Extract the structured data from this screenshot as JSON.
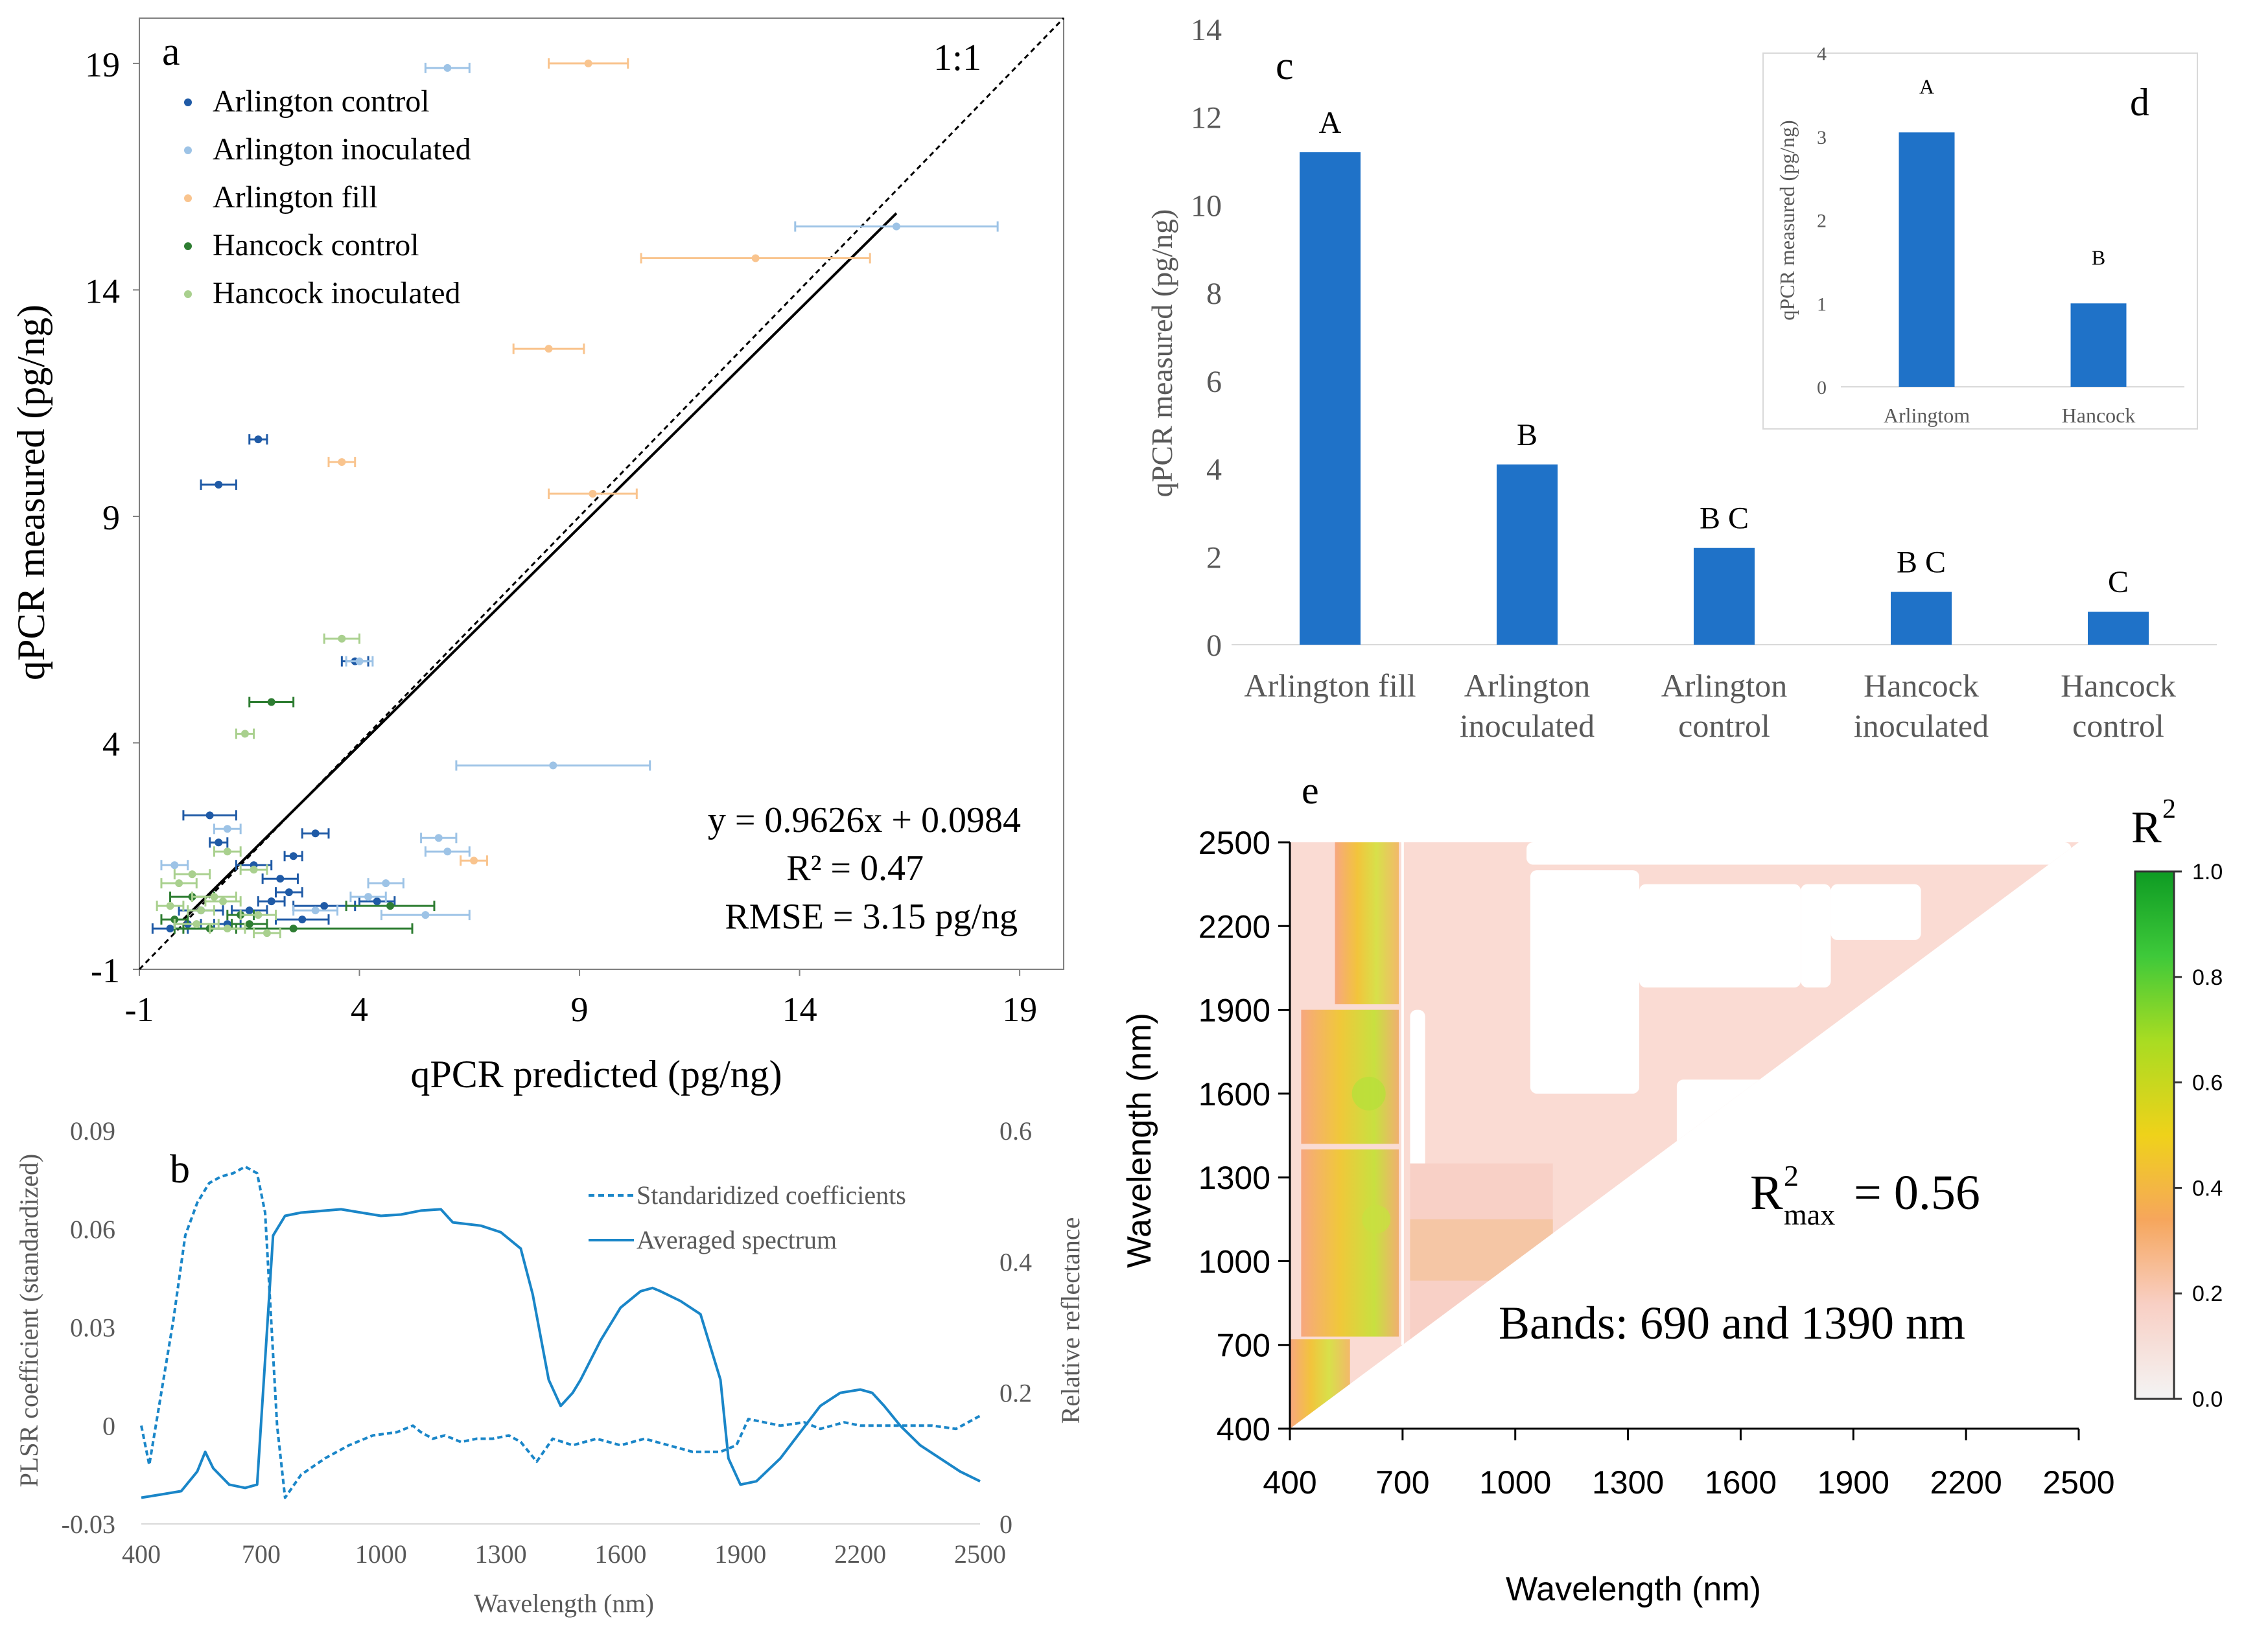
{
  "chart_data": [
    {
      "panel": "a",
      "type": "scatter",
      "xlabel": "qPCR predicted (pg/ng)",
      "ylabel": "qPCR measured (pg/ng)",
      "xlim": [
        -1,
        20
      ],
      "ylim": [
        -1,
        20
      ],
      "xticks": [
        "-1",
        "4",
        "9",
        "14",
        "19"
      ],
      "yticks": [
        "-1",
        "4",
        "9",
        "14",
        "19"
      ],
      "one_to_one_label": "1:1",
      "equation": "y = 0.9626x + 0.0984",
      "r2_text": "R² = 0.47",
      "rmse_text": "RMSE = 3.15 pg/ng",
      "fit": {
        "slope": 0.9626,
        "intercept": 0.0984,
        "x_range": [
          0,
          16.2
        ]
      },
      "series": [
        {
          "name": "Arlington control",
          "color": "#1f5aa6",
          "points": [
            [
              1.7,
              10.7,
              0.2
            ],
            [
              0.8,
              9.7,
              0.4
            ],
            [
              3.9,
              5.8,
              0.3
            ],
            [
              0.6,
              2.4,
              0.6
            ],
            [
              0.8,
              1.8,
              0.2
            ],
            [
              1.6,
              1.3,
              0.4
            ],
            [
              2.2,
              1.0,
              0.4
            ],
            [
              2.4,
              0.7,
              0.3
            ],
            [
              2.0,
              0.5,
              0.3
            ],
            [
              3.0,
              2.0,
              0.3
            ],
            [
              2.5,
              1.5,
              0.2
            ],
            [
              0.4,
              0.3,
              0.5
            ],
            [
              1.0,
              0.0,
              0.3
            ],
            [
              1.5,
              0.3,
              0.4
            ],
            [
              4.4,
              0.5,
              0.4
            ],
            [
              3.2,
              0.4,
              0.7
            ],
            [
              2.7,
              0.1,
              0.6
            ],
            [
              0.1,
              0.0,
              0.3
            ],
            [
              -0.3,
              -0.1,
              0.4
            ]
          ]
        },
        {
          "name": "Arlington inoculated",
          "color": "#9dc3e6",
          "points": [
            [
              6.0,
              18.9,
              0.5
            ],
            [
              16.2,
              15.4,
              2.3
            ],
            [
              4.6,
              0.9,
              0.4
            ],
            [
              8.4,
              3.5,
              2.2
            ],
            [
              1.0,
              2.1,
              0.3
            ],
            [
              6.0,
              1.6,
              0.5
            ],
            [
              5.5,
              0.2,
              1.0
            ],
            [
              4.0,
              5.8,
              0.3
            ],
            [
              3.0,
              0.3,
              0.5
            ],
            [
              -0.2,
              1.3,
              0.3
            ],
            [
              4.2,
              0.6,
              0.4
            ],
            [
              5.8,
              1.9,
              0.4
            ]
          ]
        },
        {
          "name": "Arlington fill",
          "color": "#f9c48e",
          "points": [
            [
              9.2,
              19.0,
              0.9
            ],
            [
              13.0,
              14.7,
              2.6
            ],
            [
              8.3,
              12.7,
              0.8
            ],
            [
              3.6,
              10.2,
              0.3
            ],
            [
              9.3,
              9.5,
              1.0
            ],
            [
              6.6,
              1.4,
              0.3
            ]
          ]
        },
        {
          "name": "Hancock control",
          "color": "#2e7d32",
          "points": [
            [
              2.0,
              4.9,
              0.5
            ],
            [
              4.7,
              0.4,
              1.0
            ],
            [
              1.5,
              0.0,
              0.4
            ],
            [
              0.2,
              0.6,
              0.5
            ],
            [
              1.3,
              0.2,
              0.3
            ],
            [
              -0.2,
              0.1,
              0.3
            ],
            [
              0.6,
              -0.1,
              0.6
            ],
            [
              2.5,
              -0.1,
              2.7
            ]
          ]
        },
        {
          "name": "Hancock inoculated",
          "color": "#a9d08e",
          "points": [
            [
              3.6,
              6.3,
              0.4
            ],
            [
              1.4,
              4.2,
              0.2
            ],
            [
              1.0,
              1.6,
              0.3
            ],
            [
              1.6,
              1.2,
              0.3
            ],
            [
              0.2,
              1.1,
              0.4
            ],
            [
              -0.1,
              0.9,
              0.4
            ],
            [
              0.9,
              0.5,
              0.4
            ],
            [
              0.4,
              0.3,
              0.3
            ],
            [
              1.7,
              0.2,
              0.4
            ],
            [
              0.3,
              0.0,
              0.5
            ],
            [
              1.0,
              -0.1,
              0.4
            ],
            [
              0.7,
              0.6,
              0.5
            ],
            [
              -0.3,
              0.4,
              0.3
            ],
            [
              1.9,
              -0.2,
              0.3
            ]
          ]
        }
      ]
    },
    {
      "panel": "b",
      "type": "line",
      "xlabel": "Wavelength (nm)",
      "ylabel_left": "PLSR coefficient (standardized)",
      "ylabel_right": "Relative reflectance",
      "xlim": [
        400,
        2500
      ],
      "ylim_left": [
        -0.03,
        0.09
      ],
      "ylim_right": [
        0,
        0.6
      ],
      "xticks": [
        "400",
        "700",
        "1000",
        "1300",
        "1600",
        "1900",
        "2200",
        "2500"
      ],
      "yticks_left": [
        "-0.03",
        "0",
        "0.03",
        "0.06",
        "0.09"
      ],
      "yticks_right": [
        "0",
        "0.2",
        "0.4",
        "0.6"
      ],
      "series": [
        {
          "name": "Standaridized coefficients",
          "axis": "left",
          "style": "dashed",
          "x": [
            400,
            420,
            450,
            480,
            510,
            540,
            570,
            600,
            630,
            660,
            690,
            710,
            740,
            760,
            800,
            860,
            920,
            980,
            1040,
            1080,
            1100,
            1130,
            1160,
            1200,
            1240,
            1280,
            1320,
            1350,
            1390,
            1430,
            1480,
            1540,
            1600,
            1660,
            1720,
            1780,
            1850,
            1890,
            1920,
            2000,
            2060,
            2100,
            2160,
            2200,
            2260,
            2320,
            2380,
            2440,
            2500
          ],
          "y": [
            0.0,
            -0.012,
            0.01,
            0.032,
            0.058,
            0.068,
            0.074,
            0.076,
            0.077,
            0.079,
            0.077,
            0.065,
            0.0,
            -0.022,
            -0.015,
            -0.01,
            -0.006,
            -0.003,
            -0.002,
            0.0,
            -0.002,
            -0.004,
            -0.003,
            -0.005,
            -0.004,
            -0.004,
            -0.003,
            -0.005,
            -0.011,
            -0.004,
            -0.006,
            -0.004,
            -0.006,
            -0.004,
            -0.006,
            -0.008,
            -0.008,
            -0.006,
            0.002,
            0.0,
            0.001,
            -0.001,
            0.001,
            0.0,
            0.0,
            0.0,
            0.0,
            -0.001,
            0.003
          ]
        },
        {
          "name": "Averaged spectrum",
          "axis": "right",
          "style": "solid",
          "x": [
            400,
            450,
            500,
            540,
            560,
            580,
            620,
            660,
            690,
            710,
            730,
            760,
            800,
            900,
            950,
            1000,
            1050,
            1100,
            1150,
            1180,
            1250,
            1300,
            1350,
            1380,
            1420,
            1450,
            1480,
            1500,
            1550,
            1600,
            1650,
            1680,
            1700,
            1750,
            1800,
            1850,
            1870,
            1900,
            1940,
            2000,
            2050,
            2100,
            2150,
            2200,
            2230,
            2260,
            2300,
            2350,
            2400,
            2450,
            2500
          ],
          "y": [
            0.04,
            0.045,
            0.05,
            0.08,
            0.11,
            0.085,
            0.06,
            0.055,
            0.06,
            0.25,
            0.44,
            0.47,
            0.475,
            0.48,
            0.475,
            0.47,
            0.472,
            0.478,
            0.48,
            0.46,
            0.455,
            0.445,
            0.42,
            0.35,
            0.22,
            0.18,
            0.2,
            0.22,
            0.28,
            0.33,
            0.355,
            0.36,
            0.355,
            0.34,
            0.32,
            0.22,
            0.1,
            0.06,
            0.065,
            0.1,
            0.14,
            0.18,
            0.2,
            0.205,
            0.2,
            0.18,
            0.15,
            0.12,
            0.1,
            0.08,
            0.065
          ]
        }
      ]
    },
    {
      "panel": "c",
      "type": "bar",
      "ylabel": "qPCR measured  (pg/ng)",
      "ylim": [
        0,
        14
      ],
      "yticks": [
        "0",
        "2",
        "4",
        "6",
        "8",
        "10",
        "12",
        "14"
      ],
      "categories": [
        "Arlington fill",
        "Arlington inoculated",
        "Arlington control",
        "Hancock inoculated",
        "Hancock control"
      ],
      "category_lines": [
        [
          "Arlington fill"
        ],
        [
          "Arlington",
          "inoculated"
        ],
        [
          "Arlington",
          "control"
        ],
        [
          "Hancock",
          "inoculated"
        ],
        [
          "Hancock",
          "control"
        ]
      ],
      "values": [
        11.2,
        4.1,
        2.2,
        1.2,
        0.75
      ],
      "letters": [
        "A",
        "B",
        "B C",
        "B C",
        "C"
      ],
      "color": "#1f72c8"
    },
    {
      "panel": "d",
      "type": "bar",
      "ylabel": "qPCR measured  (pg/ng)",
      "ylim": [
        0,
        4
      ],
      "yticks": [
        "0",
        "1",
        "2",
        "3",
        "4"
      ],
      "categories": [
        "Arlingtom",
        "Hancock"
      ],
      "values": [
        3.05,
        1.0
      ],
      "letters": [
        "A",
        "B"
      ],
      "color": "#1f72c8"
    },
    {
      "panel": "e",
      "type": "heatmap",
      "xlabel": "Wavelength   (nm)",
      "ylabel": "Wavelength   (nm)",
      "xlim": [
        400,
        2500
      ],
      "ylim": [
        400,
        2500
      ],
      "xticks": [
        "400",
        "700",
        "1000",
        "1300",
        "1600",
        "1900",
        "2200",
        "2500"
      ],
      "yticks": [
        "400",
        "700",
        "1000",
        "1300",
        "1600",
        "1900",
        "2200",
        "2500"
      ],
      "colorbar_title": "R",
      "colorbar_title_sup": "2",
      "colorbar_ticks": [
        "0.0",
        "0.2",
        "0.4",
        "0.6",
        "0.8",
        "1.0"
      ],
      "colorbar_range": [
        0,
        1
      ],
      "r2max_label": "R",
      "r2max_sup": "2",
      "r2max_sub": "max",
      "r2max_value": "=  0.56",
      "bands_text": "Bands: 690 and 1390 nm",
      "peak": {
        "x": 690,
        "y": 1390,
        "r2": 0.56
      }
    }
  ],
  "panel_labels": {
    "a": "a",
    "b": "b",
    "c": "c",
    "d": "d",
    "e": "e"
  }
}
